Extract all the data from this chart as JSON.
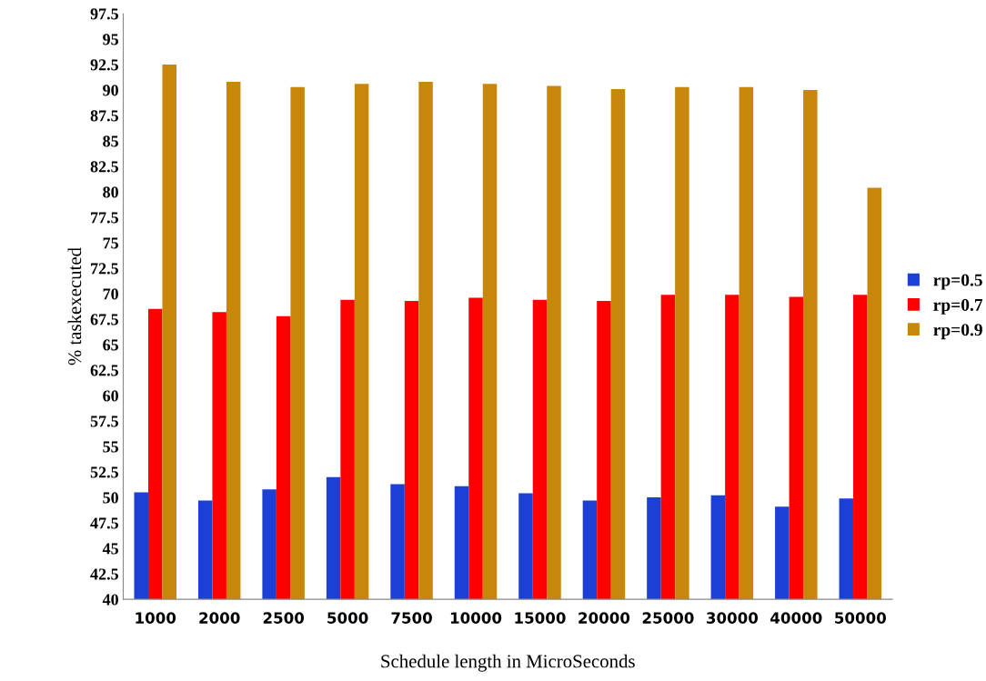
{
  "chart_data": {
    "type": "bar",
    "xlabel": "Schedule length in MicroSeconds",
    "ylabel": "% taskexecuted",
    "categories": [
      "1000",
      "2000",
      "2500",
      "5000",
      "7500",
      "10000",
      "15000",
      "20000",
      "25000",
      "30000",
      "40000",
      "50000"
    ],
    "series": [
      {
        "name": "rp=0.5",
        "color": "#1c3fd6",
        "values": [
          50.5,
          49.7,
          50.8,
          52.0,
          51.3,
          51.1,
          50.4,
          49.7,
          50.0,
          50.2,
          49.1,
          49.9
        ]
      },
      {
        "name": "rp=0.7",
        "color": "#ff0000",
        "values": [
          68.5,
          68.2,
          67.8,
          69.4,
          69.3,
          69.6,
          69.4,
          69.3,
          69.9,
          69.9,
          69.7,
          69.9
        ]
      },
      {
        "name": "rp=0.9",
        "color": "#c8860a",
        "values": [
          92.5,
          90.8,
          90.3,
          90.6,
          90.8,
          90.6,
          90.4,
          90.1,
          90.3,
          90.3,
          90.0,
          80.4
        ]
      }
    ],
    "ylim": [
      40,
      97.5
    ],
    "yticks": [
      40,
      {
        "value": 42.5,
        "label": "42.5"
      },
      45,
      {
        "value": 47.5,
        "label": "47.5"
      },
      50,
      {
        "value": 52.5,
        "label": "52.5"
      },
      55,
      {
        "value": 57.5,
        "label": "57.5"
      },
      60,
      {
        "value": 62.5,
        "label": "62.5"
      },
      65,
      {
        "value": 67.5,
        "label": "67.5"
      },
      70,
      {
        "value": 72.5,
        "label": "72.5"
      },
      75,
      {
        "value": 77.5,
        "label": "77.5"
      },
      80,
      {
        "value": 82.5,
        "label": "82.5"
      },
      85,
      {
        "value": 87.5,
        "label": "87.5"
      },
      90,
      {
        "value": 92.5,
        "label": "92.5"
      },
      95,
      {
        "value": 97.5,
        "label": "97.5"
      }
    ],
    "grid": false,
    "legend": "right"
  }
}
